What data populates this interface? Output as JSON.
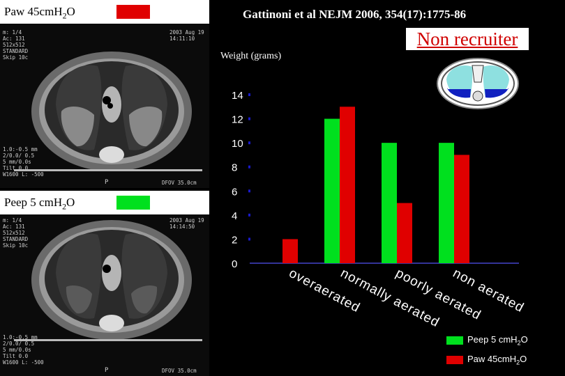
{
  "colors": {
    "peep": "#00e01e",
    "paw": "#e00000",
    "title": "#d00000",
    "background": "#000000"
  },
  "top_panel": {
    "caption": "Paw 45cmH",
    "caption_sub": "2",
    "caption_tail": "O",
    "ct_text_left": "m: 1/4\nAc: 131\n512x512\nSTANDARD\nSkip 10c",
    "ct_text_right": "2003 Aug 19\n14:11:10",
    "ct_text_bottom": "1.0:-0.5 mm\n2/0.0/ 0.5\n5 mm/0.0s\nTilt 0.0\nW1600 L: -500",
    "ct_text_bottom_right": "DFOV 35.0cm",
    "ct_marker": "P"
  },
  "bottom_panel": {
    "caption": "Peep 5 cmH",
    "caption_sub": "2",
    "caption_tail": "O",
    "ct_text_left": "m: 1/4\nAc: 131\n512x512\nSTANDARD\nSkip 10c",
    "ct_text_right": "2003 Aug 19\n14:14:50",
    "ct_text_bottom": "1.0:-0.5 mm\n2/0.0/ 0.5\n5 mm/0.0s\nTilt 0.0\nW1600 L: -500",
    "ct_text_bottom_right": "DFOV 35.0cm",
    "ct_marker": "P"
  },
  "header": {
    "citation": "Gattinoni et al NEJM 2006, 354(17):1775-86",
    "title": "Non recruiter"
  },
  "chart_data": {
    "type": "bar",
    "title": "Non recruiter",
    "ylabel": "Weight (grams)",
    "xlabel": "",
    "ylim": [
      0,
      14
    ],
    "yticks": [
      0,
      2,
      4,
      6,
      8,
      10,
      12,
      14
    ],
    "categories": [
      "overaerated",
      "normally aerated",
      "poorly aerated",
      "non aerated"
    ],
    "series": [
      {
        "name": "Peep 5 cmH2O",
        "color": "#00e01e",
        "values": [
          0,
          12,
          10,
          10
        ]
      },
      {
        "name": "Paw 45cmH2O",
        "color": "#e00000",
        "values": [
          2,
          13,
          5,
          9
        ]
      }
    ],
    "legend_position": "bottom-right",
    "grid": false
  },
  "legend": {
    "peep_label": "Peep 5 cmH",
    "peep_sub": "2",
    "peep_tail": "O",
    "paw_label": "Paw 45cmH",
    "paw_sub": "2",
    "paw_tail": "O"
  }
}
